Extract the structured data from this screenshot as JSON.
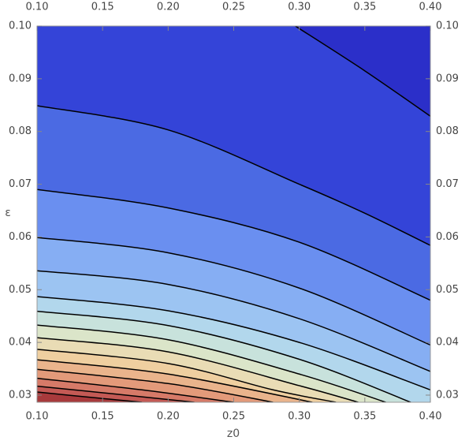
{
  "chart_data": {
    "type": "contour",
    "xlabel": "z0",
    "ylabel": "ε",
    "xlim": [
      0.1,
      0.4
    ],
    "ylim": [
      0.02865,
      0.1
    ],
    "xticks": [
      {
        "value": 0.1,
        "label": "0.10"
      },
      0.15,
      {
        "value": 0.2,
        "label": "0.20"
      },
      0.25,
      {
        "value": 0.3,
        "label": "0.30"
      },
      0.35,
      {
        "value": 0.4,
        "label": "0.40"
      }
    ],
    "yticks": [
      0.03,
      0.04,
      0.05,
      0.06,
      0.07,
      0.08,
      0.09,
      {
        "value": 0.1,
        "label": "0.10"
      }
    ],
    "line_color": "#000000",
    "band_colors": [
      "#2b2fc9",
      "#3444d8",
      "#4b6ae3",
      "#6a8ff0",
      "#86aef3",
      "#9cc4f2",
      "#b2d7ec",
      "#c8e2dc",
      "#dbe5c9",
      "#e9dcb5",
      "#efcfa0",
      "#eab48c",
      "#e39a7a",
      "#d67a68",
      "#c45a55",
      "#a83a3c"
    ],
    "lines": [
      {
        "x": [
          0.297,
          0.35,
          0.4
        ],
        "y": [
          0.1,
          0.0915,
          0.0829
        ]
      },
      {
        "x": [
          0.1,
          0.2,
          0.3,
          0.35,
          0.4
        ],
        "y": [
          0.0849,
          0.0803,
          0.07,
          0.0645,
          0.0584
        ]
      },
      {
        "x": [
          0.1,
          0.2,
          0.3,
          0.4
        ],
        "y": [
          0.069,
          0.0655,
          0.059,
          0.048
        ]
      },
      {
        "x": [
          0.1,
          0.2,
          0.3,
          0.4
        ],
        "y": [
          0.0599,
          0.057,
          0.0503,
          0.0395
        ]
      },
      {
        "x": [
          0.1,
          0.2,
          0.3,
          0.4
        ],
        "y": [
          0.0536,
          0.051,
          0.0445,
          0.0345
        ]
      },
      {
        "x": [
          0.1,
          0.2,
          0.3,
          0.4
        ],
        "y": [
          0.0487,
          0.046,
          0.04,
          0.031
        ]
      },
      {
        "x": [
          0.1,
          0.2,
          0.3,
          0.385
        ],
        "y": [
          0.0459,
          0.0432,
          0.0368,
          0.02865
        ]
      },
      {
        "x": [
          0.1,
          0.2,
          0.3,
          0.366
        ],
        "y": [
          0.0433,
          0.0405,
          0.034,
          0.02865
        ]
      },
      {
        "x": [
          0.1,
          0.2,
          0.3,
          0.345
        ],
        "y": [
          0.0409,
          0.0382,
          0.0318,
          0.02865
        ]
      },
      {
        "x": [
          0.1,
          0.2,
          0.28,
          0.328
        ],
        "y": [
          0.0387,
          0.036,
          0.031,
          0.02865
        ]
      },
      {
        "x": [
          0.1,
          0.2,
          0.31
        ],
        "y": [
          0.0367,
          0.034,
          0.02865
        ]
      },
      {
        "x": [
          0.1,
          0.2,
          0.28
        ],
        "y": [
          0.0349,
          0.0322,
          0.02865
        ]
      },
      {
        "x": [
          0.1,
          0.18,
          0.25
        ],
        "y": [
          0.0332,
          0.031,
          0.02865
        ]
      },
      {
        "x": [
          0.1,
          0.16,
          0.22
        ],
        "y": [
          0.0317,
          0.0302,
          0.02865
        ]
      },
      {
        "x": [
          0.1,
          0.14,
          0.18
        ],
        "y": [
          0.0306,
          0.0296,
          0.02865
        ]
      }
    ]
  }
}
